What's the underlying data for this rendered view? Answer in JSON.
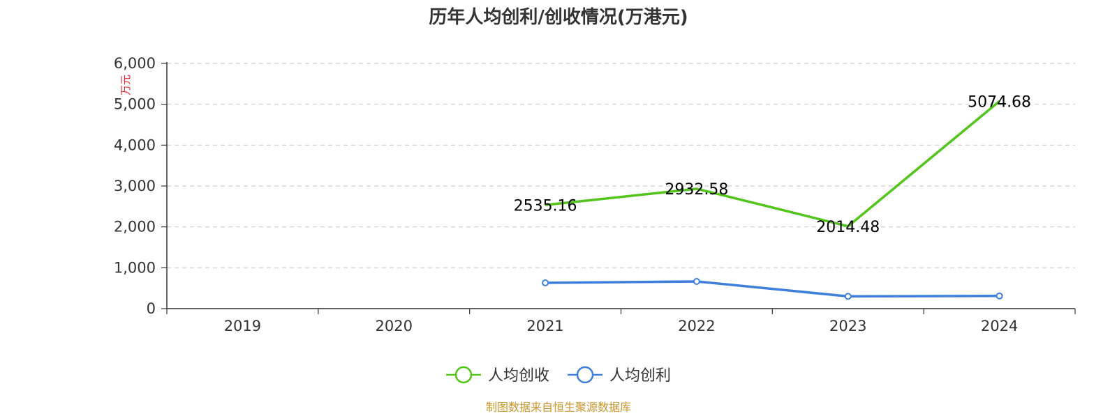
{
  "title": "历年人均创利/创收情况(万港元)",
  "source": "制图数据来自恒生聚源数据库",
  "chart_data": {
    "type": "line",
    "title": "历年人均创利/创收情况(万港元)",
    "ylabel": "万元",
    "xlabel": "",
    "categories": [
      "2019",
      "2020",
      "2021",
      "2022",
      "2023",
      "2024"
    ],
    "ylim": [
      0,
      6000
    ],
    "yticks": [
      "0",
      "1,000",
      "2,000",
      "3,000",
      "4,000",
      "5,000",
      "6,000"
    ],
    "grid": true,
    "legend_position": "bottom-center",
    "series": [
      {
        "name": "人均创收",
        "color": "#52c41a",
        "values": [
          null,
          null,
          2535.16,
          2932.58,
          2014.48,
          5074.68
        ],
        "labels": [
          "",
          "",
          "2535.16",
          "2932.58",
          "2014.48",
          "5074.68"
        ]
      },
      {
        "name": "人均创利",
        "color": "#3e7fdb",
        "values": [
          null,
          null,
          630,
          665,
          300,
          310
        ],
        "labels": [
          "",
          "",
          "",
          "",
          "",
          ""
        ]
      }
    ]
  }
}
